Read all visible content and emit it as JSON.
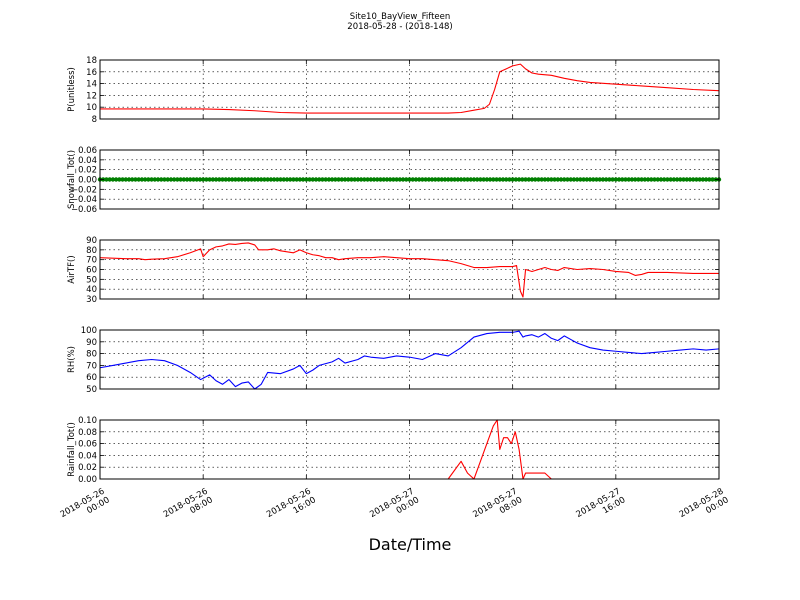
{
  "title_line1": "Site10_BayView_Fifteen",
  "title_line2": "2018-05-28 - (2018-148)",
  "xlabel": "Date/Time",
  "x_ticks": [
    {
      "t": 0,
      "l1": "2018-05-26",
      "l2": "00:00"
    },
    {
      "t": 8,
      "l1": "2018-05-26",
      "l2": "08:00"
    },
    {
      "t": 16,
      "l1": "2018-05-26",
      "l2": "16:00"
    },
    {
      "t": 24,
      "l1": "2018-05-27",
      "l2": "00:00"
    },
    {
      "t": 32,
      "l1": "2018-05-27",
      "l2": "08:00"
    },
    {
      "t": 40,
      "l1": "2018-05-27",
      "l2": "16:00"
    },
    {
      "t": 48,
      "l1": "2018-05-28",
      "l2": "00:00"
    }
  ],
  "chart_data": [
    {
      "type": "line",
      "ylabel": "P(unitless)",
      "xlim": [
        "2018-05-26 00:00",
        "2018-05-28 00:00"
      ],
      "ylim": [
        8,
        18
      ],
      "yticks": [
        8,
        10,
        12,
        14,
        16,
        18
      ],
      "ytick_labels": [
        "8",
        "10",
        "12",
        "14",
        "16",
        "18"
      ],
      "grid": true,
      "color": "#ff0000",
      "points": [
        [
          0,
          9.7
        ],
        [
          3,
          9.7
        ],
        [
          6,
          9.7
        ],
        [
          8,
          9.7
        ],
        [
          10,
          9.6
        ],
        [
          12,
          9.4
        ],
        [
          14,
          9.1
        ],
        [
          16,
          9.0
        ],
        [
          20,
          9.0
        ],
        [
          24,
          9.0
        ],
        [
          27,
          9.0
        ],
        [
          28,
          9.1
        ],
        [
          29,
          9.5
        ],
        [
          29.8,
          9.8
        ],
        [
          30.2,
          10.5
        ],
        [
          30.6,
          13.0
        ],
        [
          31,
          16.0
        ],
        [
          31.5,
          16.5
        ],
        [
          32,
          17.0
        ],
        [
          32.6,
          17.3
        ],
        [
          33,
          16.5
        ],
        [
          33.5,
          15.8
        ],
        [
          34,
          15.6
        ],
        [
          35,
          15.4
        ],
        [
          36,
          14.9
        ],
        [
          37,
          14.5
        ],
        [
          38,
          14.2
        ],
        [
          40,
          13.9
        ],
        [
          42,
          13.6
        ],
        [
          44,
          13.3
        ],
        [
          46,
          13.0
        ],
        [
          48,
          12.8
        ]
      ]
    },
    {
      "type": "scatter",
      "ylabel": "Snowfall_Tot()",
      "xlim": [
        "2018-05-26 00:00",
        "2018-05-28 00:00"
      ],
      "ylim": [
        -0.06,
        0.06
      ],
      "yticks": [
        -0.06,
        -0.04,
        -0.02,
        0,
        0.02,
        0.04,
        0.06
      ],
      "ytick_labels": [
        "−0.06",
        "−0.04",
        "−0.02",
        "0.00",
        "0.02",
        "0.04",
        "0.06"
      ],
      "grid": true,
      "color": "#007f00",
      "constant_value": 0,
      "interval_hours": 0.25
    },
    {
      "type": "line",
      "ylabel": "AirTF()",
      "xlim": [
        "2018-05-26 00:00",
        "2018-05-28 00:00"
      ],
      "ylim": [
        30,
        90
      ],
      "yticks": [
        30,
        40,
        50,
        60,
        70,
        80,
        90
      ],
      "ytick_labels": [
        "30",
        "40",
        "50",
        "60",
        "70",
        "80",
        "90"
      ],
      "grid": true,
      "color": "#ff0000",
      "points": [
        [
          0,
          72
        ],
        [
          1,
          71.5
        ],
        [
          2,
          71
        ],
        [
          3,
          71
        ],
        [
          3.5,
          70
        ],
        [
          4,
          70.5
        ],
        [
          5,
          71
        ],
        [
          6,
          73
        ],
        [
          7,
          77
        ],
        [
          7.8,
          81
        ],
        [
          8,
          73
        ],
        [
          8.5,
          80
        ],
        [
          9,
          83
        ],
        [
          9.5,
          84
        ],
        [
          10,
          86
        ],
        [
          10.5,
          85.5
        ],
        [
          11,
          86.5
        ],
        [
          11.5,
          87
        ],
        [
          12,
          85
        ],
        [
          12.3,
          80
        ],
        [
          13,
          80
        ],
        [
          13.5,
          81
        ],
        [
          14,
          79
        ],
        [
          14.5,
          78
        ],
        [
          15,
          77
        ],
        [
          15.5,
          80
        ],
        [
          16,
          77
        ],
        [
          16.5,
          75
        ],
        [
          17,
          74
        ],
        [
          17.5,
          72
        ],
        [
          18,
          72
        ],
        [
          18.5,
          70
        ],
        [
          19,
          71
        ],
        [
          20,
          72
        ],
        [
          21,
          72
        ],
        [
          22,
          73
        ],
        [
          23,
          72
        ],
        [
          24,
          71
        ],
        [
          25,
          71
        ],
        [
          26,
          70
        ],
        [
          27,
          69
        ],
        [
          28,
          66
        ],
        [
          29,
          62
        ],
        [
          30,
          62
        ],
        [
          31,
          63
        ],
        [
          32,
          63
        ],
        [
          32.3,
          64
        ],
        [
          32.6,
          38
        ],
        [
          32.8,
          32
        ],
        [
          33,
          60
        ],
        [
          33.5,
          58
        ],
        [
          34,
          60
        ],
        [
          34.5,
          62
        ],
        [
          35,
          60
        ],
        [
          35.5,
          59
        ],
        [
          36,
          62
        ],
        [
          37,
          60
        ],
        [
          38,
          61
        ],
        [
          39,
          60
        ],
        [
          40,
          58
        ],
        [
          41,
          57
        ],
        [
          41.5,
          54
        ],
        [
          42,
          55
        ],
        [
          42.5,
          57
        ],
        [
          44,
          57
        ],
        [
          46,
          56
        ],
        [
          48,
          56
        ]
      ]
    },
    {
      "type": "line",
      "ylabel": "RH(%)",
      "xlim": [
        "2018-05-26 00:00",
        "2018-05-28 00:00"
      ],
      "ylim": [
        50,
        100
      ],
      "yticks": [
        50,
        60,
        70,
        80,
        90,
        100
      ],
      "ytick_labels": [
        "50",
        "60",
        "70",
        "80",
        "90",
        "100"
      ],
      "grid": true,
      "color": "#0000ff",
      "points": [
        [
          0,
          68
        ],
        [
          1,
          70
        ],
        [
          2,
          72
        ],
        [
          3,
          74
        ],
        [
          4,
          75
        ],
        [
          5,
          74
        ],
        [
          6,
          70
        ],
        [
          7,
          64
        ],
        [
          7.8,
          58
        ],
        [
          8.5,
          62
        ],
        [
          9,
          57
        ],
        [
          9.5,
          54
        ],
        [
          10,
          58
        ],
        [
          10.5,
          52
        ],
        [
          11,
          55
        ],
        [
          11.5,
          56
        ],
        [
          12,
          50
        ],
        [
          12.5,
          54
        ],
        [
          13,
          64
        ],
        [
          14,
          63
        ],
        [
          15,
          67
        ],
        [
          15.5,
          70
        ],
        [
          16,
          63
        ],
        [
          16.5,
          66
        ],
        [
          17,
          70
        ],
        [
          18,
          73
        ],
        [
          18.5,
          76
        ],
        [
          19,
          72
        ],
        [
          20,
          75
        ],
        [
          20.5,
          78
        ],
        [
          21,
          77
        ],
        [
          22,
          76
        ],
        [
          23,
          78
        ],
        [
          24,
          77
        ],
        [
          25,
          75
        ],
        [
          26,
          80
        ],
        [
          27,
          78
        ],
        [
          28,
          85
        ],
        [
          29,
          94
        ],
        [
          30,
          97
        ],
        [
          31,
          98
        ],
        [
          32,
          98
        ],
        [
          32.5,
          99
        ],
        [
          32.8,
          94
        ],
        [
          33,
          95
        ],
        [
          33.5,
          96
        ],
        [
          34,
          94
        ],
        [
          34.5,
          97
        ],
        [
          35,
          93
        ],
        [
          35.5,
          91
        ],
        [
          36,
          95
        ],
        [
          36.5,
          92
        ],
        [
          37,
          89
        ],
        [
          38,
          85
        ],
        [
          39,
          83
        ],
        [
          40,
          82
        ],
        [
          41,
          81
        ],
        [
          42,
          80
        ],
        [
          43,
          81
        ],
        [
          44,
          82
        ],
        [
          45,
          83
        ],
        [
          46,
          84
        ],
        [
          47,
          83
        ],
        [
          48,
          84
        ]
      ]
    },
    {
      "type": "line",
      "ylabel": "Rainfall_Tot()",
      "xlim": [
        "2018-05-26 00:00",
        "2018-05-28 00:00"
      ],
      "ylim": [
        0,
        0.1
      ],
      "yticks": [
        0,
        0.02,
        0.04,
        0.06,
        0.08,
        0.1
      ],
      "ytick_labels": [
        "0.00",
        "0.02",
        "0.04",
        "0.06",
        "0.08",
        "0.10"
      ],
      "grid": true,
      "color": "#ff0000",
      "points": [
        [
          0,
          0
        ],
        [
          27,
          0
        ],
        [
          28,
          0.03
        ],
        [
          28.5,
          0.01
        ],
        [
          29,
          0
        ],
        [
          29.5,
          0.03
        ],
        [
          30,
          0.06
        ],
        [
          30.5,
          0.09
        ],
        [
          30.8,
          0.1
        ],
        [
          31,
          0.05
        ],
        [
          31.3,
          0.07
        ],
        [
          31.6,
          0.07
        ],
        [
          31.9,
          0.06
        ],
        [
          32.2,
          0.08
        ],
        [
          32.5,
          0.05
        ],
        [
          32.8,
          0
        ],
        [
          33,
          0.01
        ],
        [
          34,
          0.01
        ],
        [
          34.5,
          0.01
        ],
        [
          35,
          0
        ],
        [
          48,
          0
        ]
      ]
    }
  ]
}
